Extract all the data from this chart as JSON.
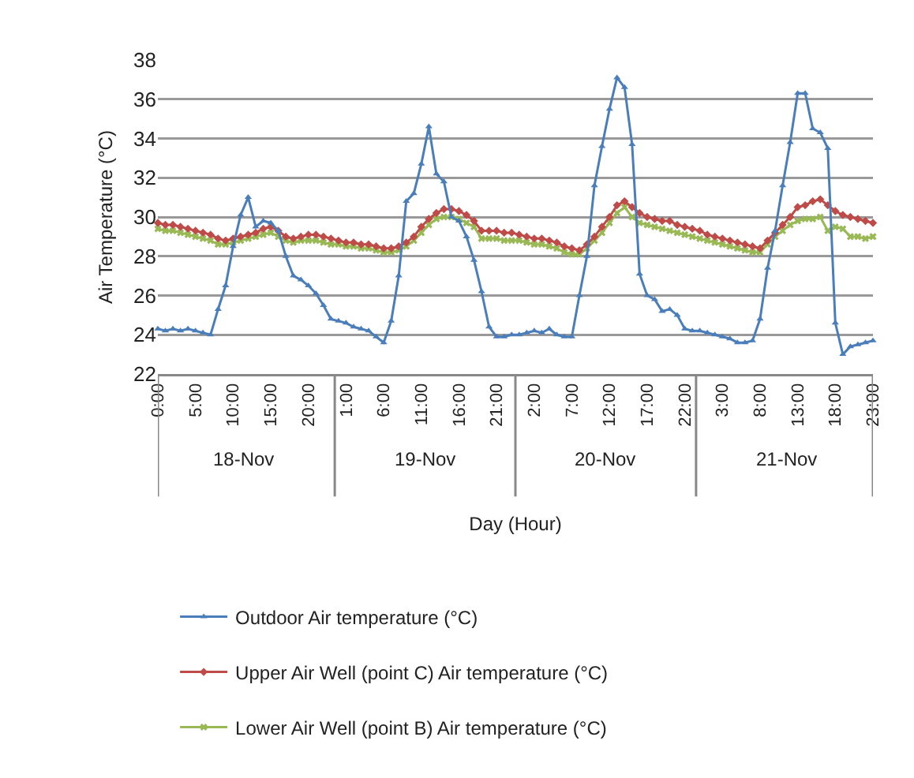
{
  "chart_data": {
    "type": "line",
    "xlabel": "Day (Hour)",
    "ylabel": "Air Temperature (°C)",
    "categories": [
      "0:00",
      null,
      null,
      null,
      null,
      "5:00",
      null,
      null,
      null,
      null,
      "10:00",
      null,
      null,
      null,
      null,
      "15:00",
      null,
      null,
      null,
      null,
      "20:00",
      null,
      null,
      null,
      null,
      "1:00",
      null,
      null,
      null,
      null,
      "6:00",
      null,
      null,
      null,
      null,
      "11:00",
      null,
      null,
      null,
      null,
      "16:00",
      null,
      null,
      null,
      null,
      "21:00",
      null,
      null,
      null,
      null,
      "2:00",
      null,
      null,
      null,
      null,
      "7:00",
      null,
      null,
      null,
      null,
      "12:00",
      null,
      null,
      null,
      null,
      "17:00",
      null,
      null,
      null,
      null,
      "22:00",
      null,
      null,
      null,
      null,
      "3:00",
      null,
      null,
      null,
      null,
      "8:00",
      null,
      null,
      null,
      null,
      "13:00",
      null,
      null,
      null,
      null,
      "18:00",
      null,
      null,
      null,
      null,
      "23:00"
    ],
    "annotations": [
      "18-Nov",
      "19-Nov",
      "20-Nov",
      "21-Nov"
    ],
    "ylim": [
      22,
      38
    ],
    "yticks": [
      22,
      24,
      26,
      28,
      30,
      32,
      34,
      36,
      38
    ],
    "grid": "y",
    "legend": "bottom",
    "line_style": "solid",
    "series": [
      {
        "name": "Outdoor Air temperature (°C)",
        "color": "#4a7ebb",
        "marker": "triangle",
        "values": [
          24.3,
          24.2,
          24.3,
          24.2,
          24.3,
          24.2,
          24.1,
          24.0,
          25.3,
          26.5,
          28.5,
          30.1,
          31.0,
          29.5,
          29.8,
          29.7,
          29.3,
          28.0,
          27.0,
          26.8,
          26.5,
          26.1,
          25.5,
          24.8,
          24.7,
          24.6,
          24.4,
          24.3,
          24.2,
          23.9,
          23.6,
          24.7,
          27.0,
          30.8,
          31.2,
          32.7,
          34.6,
          32.2,
          31.8,
          30.0,
          29.8,
          29.0,
          27.8,
          26.2,
          24.4,
          23.9,
          23.9,
          24.0,
          24.0,
          24.1,
          24.2,
          24.1,
          24.3,
          24.0,
          23.9,
          23.9,
          26.0,
          28.0,
          31.6,
          33.6,
          35.5,
          37.1,
          36.6,
          33.7,
          27.1,
          26.0,
          25.8,
          25.2,
          25.3,
          25.0,
          24.3,
          24.2,
          24.2,
          24.1,
          24.0,
          23.9,
          23.8,
          23.6,
          23.6,
          23.7,
          24.8,
          27.4,
          29.3,
          31.6,
          33.8,
          36.3,
          36.3,
          34.5,
          34.3,
          33.5,
          24.6,
          23.0,
          23.4,
          23.5,
          23.6,
          23.7
        ]
      },
      {
        "name": "Upper Air Well (point C) Air temperature (°C)",
        "color": "#be4b48",
        "marker": "diamond",
        "values": [
          29.7,
          29.6,
          29.6,
          29.5,
          29.4,
          29.3,
          29.2,
          29.1,
          28.9,
          28.8,
          28.9,
          29.0,
          29.1,
          29.2,
          29.4,
          29.5,
          29.3,
          29.0,
          28.9,
          29.0,
          29.1,
          29.1,
          29.0,
          28.9,
          28.8,
          28.7,
          28.7,
          28.6,
          28.6,
          28.5,
          28.4,
          28.4,
          28.5,
          28.7,
          29.0,
          29.5,
          29.9,
          30.2,
          30.4,
          30.4,
          30.3,
          30.1,
          29.8,
          29.3,
          29.3,
          29.3,
          29.2,
          29.2,
          29.1,
          29.0,
          28.9,
          28.9,
          28.8,
          28.7,
          28.5,
          28.4,
          28.3,
          28.6,
          29.0,
          29.5,
          30.0,
          30.6,
          30.8,
          30.5,
          30.2,
          30.0,
          29.9,
          29.8,
          29.8,
          29.6,
          29.5,
          29.4,
          29.3,
          29.1,
          29.0,
          28.9,
          28.8,
          28.7,
          28.6,
          28.5,
          28.4,
          28.8,
          29.2,
          29.6,
          30.0,
          30.5,
          30.6,
          30.8,
          30.9,
          30.6,
          30.3,
          30.1,
          30.0,
          29.9,
          29.8,
          29.7
        ]
      },
      {
        "name": "Lower Air Well (point B) Air temperature (°C)",
        "color": "#98b954",
        "marker": "cross",
        "values": [
          29.4,
          29.3,
          29.3,
          29.2,
          29.1,
          29.0,
          28.9,
          28.8,
          28.6,
          28.6,
          28.7,
          28.8,
          28.9,
          29.0,
          29.1,
          29.2,
          29.0,
          28.8,
          28.7,
          28.8,
          28.8,
          28.8,
          28.7,
          28.6,
          28.6,
          28.5,
          28.5,
          28.4,
          28.4,
          28.3,
          28.2,
          28.2,
          28.3,
          28.5,
          28.8,
          29.2,
          29.6,
          29.9,
          30.0,
          30.0,
          29.9,
          29.7,
          29.5,
          28.9,
          28.9,
          28.9,
          28.8,
          28.8,
          28.8,
          28.7,
          28.6,
          28.6,
          28.5,
          28.4,
          28.2,
          28.1,
          28.1,
          28.4,
          28.8,
          29.2,
          29.7,
          30.2,
          30.5,
          30.0,
          29.7,
          29.6,
          29.5,
          29.4,
          29.3,
          29.2,
          29.1,
          29.0,
          28.9,
          28.8,
          28.7,
          28.6,
          28.5,
          28.4,
          28.3,
          28.2,
          28.2,
          28.6,
          29.0,
          29.3,
          29.6,
          29.8,
          29.9,
          29.9,
          30.0,
          29.3,
          29.5,
          29.4,
          29.0,
          29.0,
          28.9,
          29.0
        ]
      }
    ]
  }
}
